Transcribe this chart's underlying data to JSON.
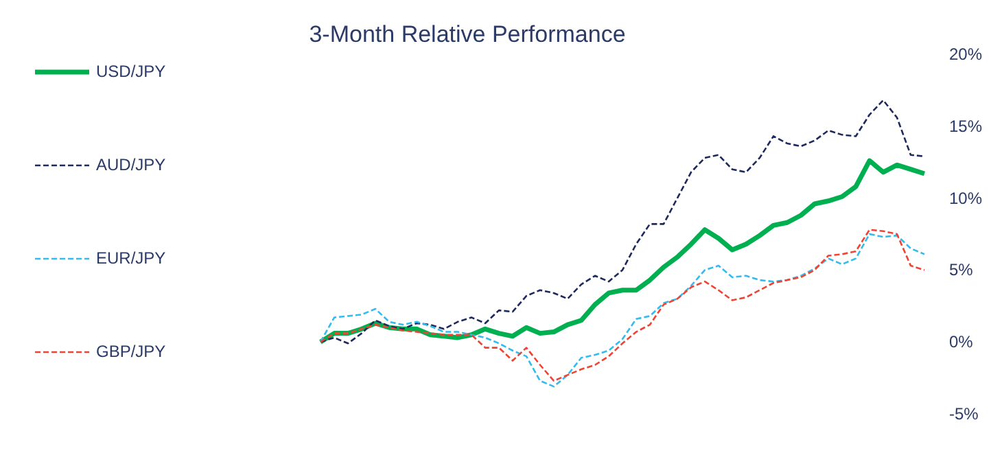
{
  "chart_data": {
    "type": "line",
    "title": "3-Month Relative Performance",
    "categories": [
      null,
      null,
      null,
      null,
      null,
      null,
      null,
      null,
      null,
      null,
      null,
      null,
      null,
      null,
      null,
      null,
      null,
      null,
      null,
      null,
      null,
      null,
      null,
      null,
      null,
      null,
      null,
      null,
      null,
      null,
      null,
      null,
      null,
      null,
      null,
      null,
      null,
      null,
      null,
      null,
      null,
      null,
      null,
      null,
      null
    ],
    "series": [
      {
        "name": "USD/JPY",
        "color": "#00b050",
        "line_style": "solid",
        "values": [
          0,
          0.6,
          0.6,
          0.9,
          1.3,
          1.0,
          0.9,
          0.9,
          0.5,
          0.4,
          0.3,
          0.5,
          0.9,
          0.6,
          0.4,
          1.0,
          0.6,
          0.7,
          1.2,
          1.5,
          2.6,
          3.4,
          3.6,
          3.6,
          4.3,
          5.2,
          5.9,
          6.8,
          7.8,
          7.2,
          6.4,
          6.8,
          7.4,
          8.1,
          8.3,
          8.8,
          9.6,
          9.8,
          10.1,
          10.8,
          12.6,
          11.8,
          12.3,
          12.0,
          11.7
        ]
      },
      {
        "name": "AUD/JPY",
        "color": "#1f2a5c",
        "line_style": "dashed",
        "values": [
          0,
          0.3,
          -0.1,
          0.6,
          1.5,
          1.1,
          0.9,
          1.3,
          1.2,
          0.9,
          1.4,
          1.7,
          1.3,
          2.2,
          2.1,
          3.2,
          3.6,
          3.4,
          3.0,
          4.0,
          4.6,
          4.2,
          5.0,
          6.8,
          8.2,
          8.2,
          10.0,
          11.8,
          12.8,
          13.0,
          12.0,
          11.8,
          12.8,
          14.3,
          13.8,
          13.6,
          14.0,
          14.7,
          14.4,
          14.3,
          15.8,
          16.8,
          15.6,
          13.0,
          12.9
        ]
      },
      {
        "name": "EUR/JPY",
        "color": "#33bbee",
        "line_style": "dashed",
        "values": [
          0,
          1.7,
          1.8,
          1.9,
          2.3,
          1.4,
          1.2,
          1.4,
          1.1,
          0.7,
          0.7,
          0.5,
          0.3,
          -0.1,
          -0.6,
          -1.0,
          -2.7,
          -3.1,
          -2.3,
          -1.1,
          -0.9,
          -0.6,
          0.2,
          1.6,
          1.8,
          2.7,
          3.0,
          3.9,
          5.0,
          5.3,
          4.5,
          4.6,
          4.3,
          4.2,
          4.3,
          4.6,
          5.1,
          5.8,
          5.4,
          5.8,
          7.5,
          7.3,
          7.4,
          6.5,
          6.1
        ]
      },
      {
        "name": "GBP/JPY",
        "color": "#ee4433",
        "line_style": "dashed",
        "values": [
          0,
          0.6,
          0.6,
          0.9,
          1.2,
          1.0,
          0.8,
          0.7,
          0.6,
          0.5,
          0.5,
          0.5,
          -0.4,
          -0.4,
          -1.3,
          -0.4,
          -1.6,
          -2.7,
          -2.3,
          -1.9,
          -1.6,
          -1.0,
          -0.1,
          0.7,
          1.2,
          2.6,
          3.0,
          3.8,
          4.2,
          3.6,
          2.9,
          3.1,
          3.6,
          4.1,
          4.3,
          4.5,
          5.0,
          6.0,
          6.1,
          6.3,
          7.8,
          7.7,
          7.5,
          5.3,
          5.0
        ]
      }
    ],
    "ylim": [
      -5,
      20
    ],
    "yticks": [
      {
        "value": -5,
        "label": "-5%"
      },
      {
        "value": 0,
        "label": "0%"
      },
      {
        "value": 5,
        "label": "5%"
      },
      {
        "value": 10,
        "label": "10%"
      },
      {
        "value": 15,
        "label": "15%"
      },
      {
        "value": 20,
        "label": "20%"
      }
    ],
    "grid": false,
    "legend": "left",
    "tick_labels": "y"
  }
}
